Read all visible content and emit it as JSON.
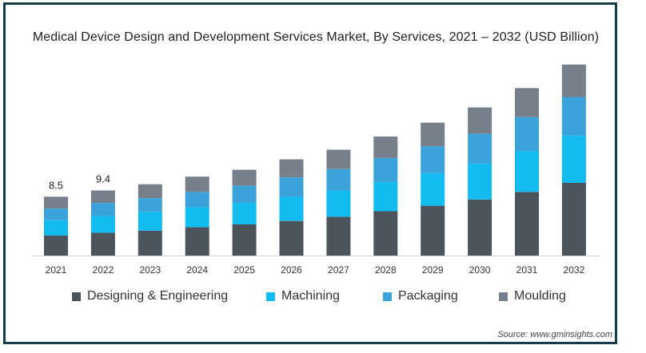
{
  "title": "Medical Device Design and Development Services Market, By Services, 2021 – 2032 (USD Billion)",
  "source": "Source: www.gminsights.com",
  "colors": {
    "designing": "#4b535b",
    "machining": "#12bbf0",
    "packaging": "#3ba3da",
    "moulding": "#77808a"
  },
  "legend": [
    {
      "label": "Designing & Engineering",
      "color": "#4b535b"
    },
    {
      "label": "Machining",
      "color": "#12bbf0"
    },
    {
      "label": "Packaging",
      "color": "#3ba3da"
    },
    {
      "label": "Moulding",
      "color": "#77808a"
    }
  ],
  "chart_data": {
    "type": "bar",
    "stacked": true,
    "categories": [
      "2021",
      "2022",
      "2023",
      "2024",
      "2025",
      "2026",
      "2027",
      "2028",
      "2029",
      "2030",
      "2031",
      "2032"
    ],
    "series": [
      {
        "name": "Designing & Engineering",
        "values": [
          2.9,
          3.3,
          3.6,
          4.1,
          4.5,
          5.0,
          5.6,
          6.4,
          7.2,
          8.1,
          9.2,
          10.5
        ]
      },
      {
        "name": "Machining",
        "values": [
          2.2,
          2.4,
          2.7,
          2.9,
          3.1,
          3.5,
          3.8,
          4.2,
          4.7,
          5.2,
          5.9,
          6.8
        ]
      },
      {
        "name": "Packaging",
        "values": [
          1.7,
          1.9,
          2.0,
          2.2,
          2.5,
          2.8,
          3.1,
          3.5,
          3.9,
          4.3,
          4.9,
          5.6
        ]
      },
      {
        "name": "Moulding",
        "values": [
          1.7,
          1.8,
          2.0,
          2.2,
          2.3,
          2.6,
          2.8,
          3.1,
          3.4,
          3.8,
          4.2,
          4.7
        ]
      }
    ],
    "data_labels": [
      "8.5",
      "9.4"
    ],
    "ylim": [
      0,
      30
    ],
    "grid": false,
    "legend_position": "bottom"
  }
}
